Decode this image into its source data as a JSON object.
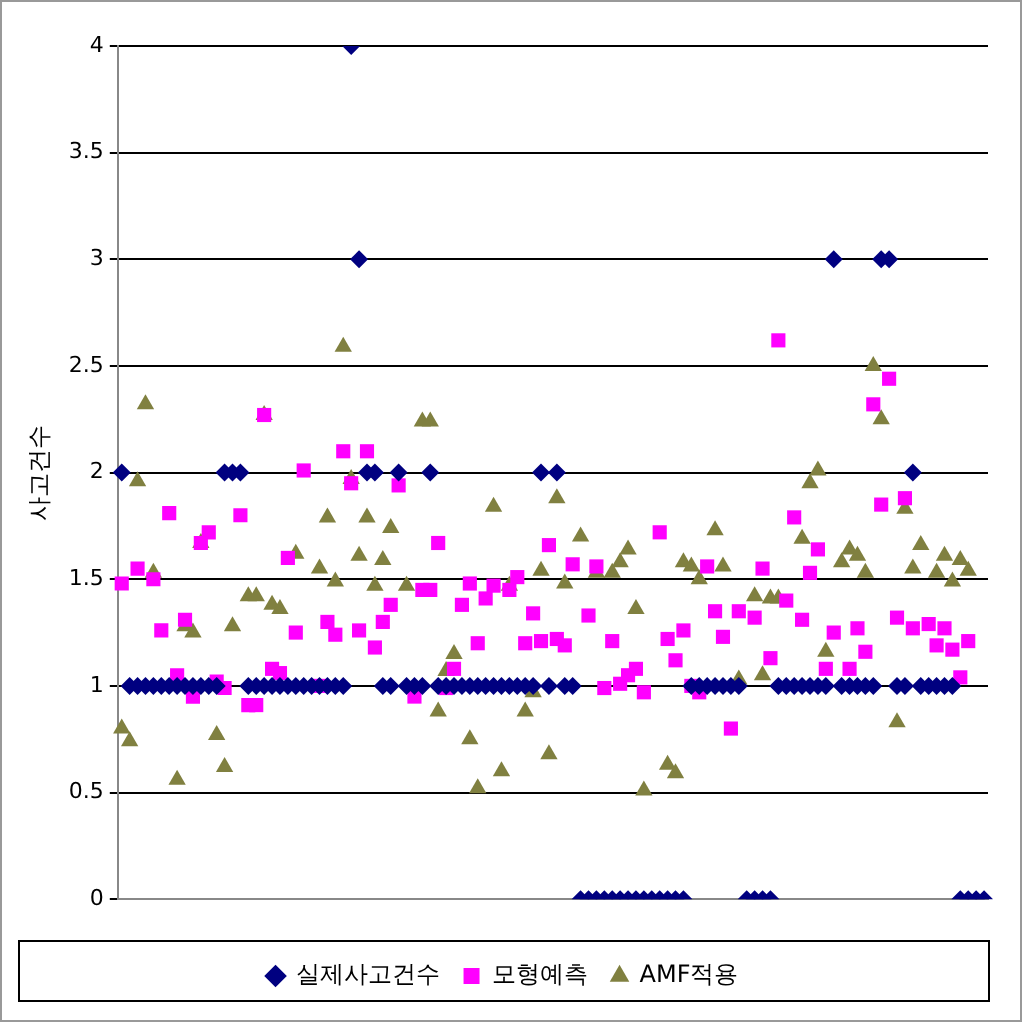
{
  "chart_data": {
    "type": "scatter",
    "ylabel": "사고건수",
    "categories": [
      null,
      null,
      null,
      null,
      null,
      null,
      null,
      null,
      null,
      null,
      null,
      null,
      null,
      null,
      null,
      null,
      null,
      null,
      null,
      null,
      null,
      null,
      null,
      null,
      null,
      null,
      null,
      null,
      null,
      null,
      null,
      null,
      null,
      null,
      null,
      null,
      null,
      null,
      null,
      null,
      null,
      null,
      null,
      null,
      null,
      null,
      null,
      null,
      null,
      null,
      null,
      null,
      null,
      null,
      null,
      null,
      null,
      null,
      null,
      null,
      null,
      null,
      null,
      null,
      null,
      null,
      null,
      null,
      null,
      null,
      null,
      null,
      null,
      null,
      null,
      null,
      null,
      null,
      null,
      null,
      null,
      null,
      null,
      null,
      null,
      null,
      null,
      null,
      null,
      null,
      null,
      null,
      null,
      null,
      null,
      null,
      null,
      null,
      null,
      null,
      null,
      null,
      null,
      null,
      null,
      null,
      null,
      null,
      null,
      null
    ],
    "ylim": [
      0,
      4
    ],
    "yticks": [
      0,
      0.5,
      1,
      1.5,
      2,
      2.5,
      3,
      3.5,
      4
    ],
    "grid": "y",
    "legend": "bottom",
    "series": [
      {
        "name": "실제사고건수",
        "color": "#000080",
        "marker": "diamond",
        "values": [
          2,
          1,
          1,
          1,
          1,
          1,
          1,
          1,
          1,
          1,
          1,
          1,
          1,
          2,
          2,
          2,
          1,
          1,
          1,
          1,
          1,
          1,
          1,
          1,
          1,
          1,
          1,
          1,
          1,
          4,
          3,
          2,
          2,
          1,
          1,
          2,
          1,
          1,
          1,
          2,
          1,
          1,
          1,
          1,
          1,
          1,
          1,
          1,
          1,
          1,
          1,
          1,
          1,
          2,
          1,
          2,
          1,
          1,
          0,
          0,
          0,
          0,
          0,
          0,
          0,
          0,
          0,
          0,
          0,
          0,
          0,
          0,
          1,
          1,
          1,
          1,
          1,
          1,
          1,
          0,
          0,
          0,
          0,
          1,
          1,
          1,
          1,
          1,
          1,
          1,
          3,
          1,
          1,
          1,
          1,
          1,
          3,
          3,
          1,
          1,
          2,
          1,
          1,
          1,
          1,
          1,
          0,
          0,
          0,
          0
        ]
      },
      {
        "name": "모형예측",
        "color": "#ff00ff",
        "marker": "square",
        "values": [
          1.48,
          null,
          1.55,
          null,
          1.5,
          1.26,
          1.81,
          1.05,
          1.31,
          0.95,
          1.67,
          1.72,
          1.02,
          0.99,
          null,
          1.8,
          0.91,
          0.91,
          2.27,
          1.08,
          1.06,
          1.6,
          1.25,
          2.01,
          null,
          1.0,
          1.3,
          1.24,
          2.1,
          1.95,
          1.26,
          2.1,
          1.18,
          1.3,
          1.38,
          1.94,
          null,
          0.95,
          1.45,
          1.45,
          1.67,
          0.99,
          1.08,
          1.38,
          1.48,
          1.2,
          1.41,
          1.47,
          null,
          1.45,
          1.51,
          1.2,
          1.34,
          1.21,
          1.66,
          1.22,
          1.19,
          1.57,
          null,
          1.33,
          1.56,
          0.99,
          1.21,
          1.01,
          1.05,
          1.08,
          0.97,
          null,
          1.72,
          1.22,
          1.12,
          1.26,
          1.0,
          0.97,
          1.56,
          1.35,
          1.23,
          0.8,
          1.35,
          null,
          1.32,
          1.55,
          1.13,
          2.62,
          1.4,
          1.79,
          1.31,
          1.53,
          1.64,
          1.08,
          1.25,
          null,
          1.08,
          1.27,
          1.16,
          2.32,
          1.85,
          2.44,
          1.32,
          1.88,
          1.27,
          null,
          1.29,
          1.19,
          1.27,
          1.17,
          1.04,
          1.21,
          null,
          null
        ]
      },
      {
        "name": "AMF적용",
        "color": "#808040",
        "marker": "triangle",
        "values": [
          0.8,
          0.74,
          1.96,
          2.32,
          1.53,
          null,
          null,
          0.56,
          1.28,
          1.25,
          1.67,
          null,
          0.77,
          0.62,
          1.28,
          null,
          1.42,
          1.42,
          2.27,
          1.38,
          1.36,
          null,
          1.62,
          null,
          null,
          1.55,
          1.79,
          1.49,
          2.59,
          1.97,
          1.61,
          1.79,
          1.47,
          1.59,
          1.74,
          null,
          1.47,
          null,
          2.24,
          2.24,
          0.88,
          1.07,
          1.15,
          null,
          0.75,
          0.52,
          null,
          1.84,
          0.6,
          1.47,
          null,
          0.88,
          0.97,
          1.54,
          0.68,
          1.88,
          1.48,
          null,
          1.7,
          null,
          1.53,
          null,
          1.53,
          1.58,
          1.64,
          1.36,
          0.51,
          null,
          null,
          0.63,
          0.59,
          1.58,
          1.56,
          1.5,
          null,
          1.73,
          1.56,
          null,
          1.03,
          null,
          1.42,
          1.05,
          1.41,
          1.41,
          null,
          null,
          1.69,
          1.95,
          2.01,
          1.16,
          null,
          1.58,
          1.64,
          1.61,
          1.53,
          2.5,
          2.25,
          null,
          0.83,
          1.83,
          1.55,
          1.66,
          null,
          1.53,
          1.61,
          1.49,
          1.59,
          1.54,
          null,
          null
        ]
      }
    ]
  }
}
